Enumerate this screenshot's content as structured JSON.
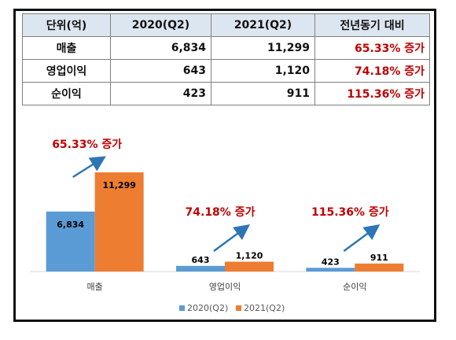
{
  "table": {
    "headers": [
      "단위(억)",
      "2020(Q2)",
      "2021(Q2)",
      "전년동기 대비"
    ],
    "rows": [
      {
        "label": "매출",
        "v2020": "6,834",
        "v2021": "11,299",
        "growth": "65.33% 증가"
      },
      {
        "label": "영업이익",
        "v2020": "643",
        "v2021": "1,120",
        "growth": "74.18% 증가"
      },
      {
        "label": "순이익",
        "v2020": "423",
        "v2021": "911",
        "growth": "115.36% 증가"
      }
    ]
  },
  "colors": {
    "series_2020": "#5b9bd5",
    "series_2021": "#ed7d31",
    "growth_text": "#c00000",
    "arrow": "#2e75b6",
    "header_bg": "#dce6f1"
  },
  "chart_data": {
    "type": "bar",
    "categories": [
      "매출",
      "영업이익",
      "순이익"
    ],
    "series": [
      {
        "name": "2020(Q2)",
        "values": [
          6834,
          643,
          423
        ],
        "labels": [
          "6,834",
          "643",
          "423"
        ]
      },
      {
        "name": "2021(Q2)",
        "values": [
          11299,
          1120,
          911
        ],
        "labels": [
          "11,299",
          "1,120",
          "911"
        ]
      }
    ],
    "annotations": [
      "65.33% 증가",
      "74.18% 증가",
      "115.36% 증가"
    ],
    "ylim": [
      0,
      12000
    ],
    "legend": "bottom",
    "grid": false
  }
}
